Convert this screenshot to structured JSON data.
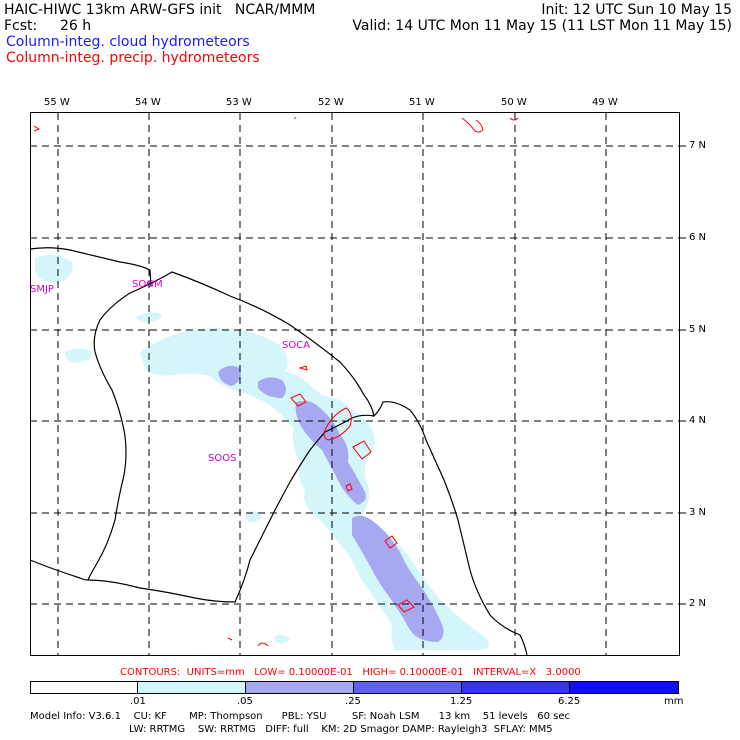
{
  "header": {
    "title": "HAIC-HIWC 13km ARW-GFS init   NCAR/MMM",
    "init": "Init: 12 UTC Sun 10 May 15",
    "fcst_label": "Fcst:",
    "fcst_value": "26 h",
    "valid": "Valid: 14 UTC Mon 11 May 15 (11 LST Mon 11 May 15)",
    "field1": "Column-integ. cloud hydrometeors",
    "field2": "Column-integ. precip. hydrometeors"
  },
  "axes": {
    "longitudes": [
      "55 W",
      "54 W",
      "53 W",
      "52 W",
      "51 W",
      "50 W",
      "49 W"
    ],
    "latitudes": [
      "7 N",
      "6 N",
      "5 N",
      "4 N",
      "3 N",
      "2 N"
    ]
  },
  "stations": [
    "SMJP",
    "SOGM",
    "SOCA",
    "SOOS"
  ],
  "contour_info": "CONTOURS:  UNITS=mm   LOW= 0.10000E-01   HIGH= 0.10000E-01   INTERVAL=X   3.0000",
  "colorbar": {
    "ticks": [
      ".01",
      ".05",
      ".25",
      "1.25",
      "6.25"
    ],
    "unit": "mm",
    "colors": [
      "#ffffff",
      "#d4f6fb",
      "#a7a8f2",
      "#6060f0",
      "#1010ee"
    ]
  },
  "footer": {
    "line1": "Model Info: V3.6.1    CU: KF       MP: Thompson      PBL: YSU        SF: Noah LSM      13 km    51 levels   60 sec",
    "line2": "LW: RRTMG    SW: RRTMG   DIFF: full    KM: 2D Smagor DAMP: Rayleigh3  SFLAY: MM5"
  }
}
